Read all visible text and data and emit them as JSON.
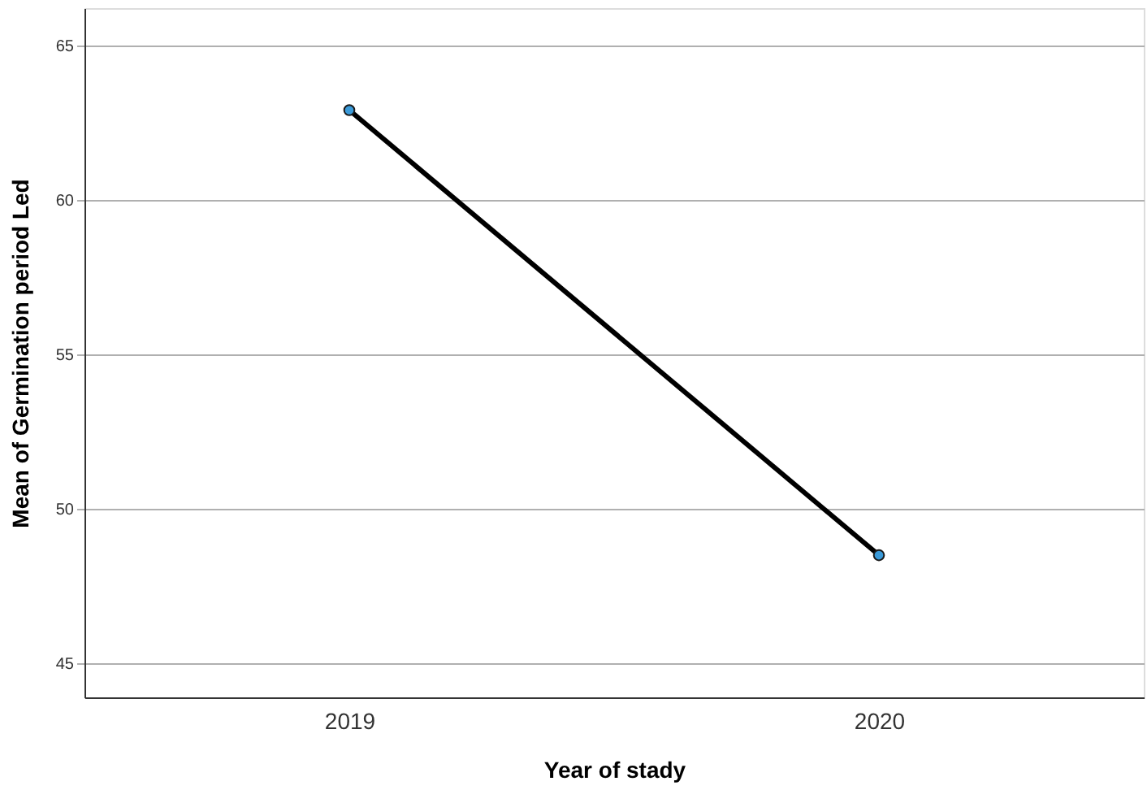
{
  "chart_data": {
    "type": "line",
    "xlabel": "Year of stady",
    "ylabel": "Mean of Germination period  Led",
    "categories": [
      "2019",
      "2020"
    ],
    "series": [
      {
        "color": "#000000",
        "values": [
          62.9,
          48.5
        ]
      }
    ],
    "ylim": [
      43.9,
      66.2
    ],
    "yticks": [
      45,
      50,
      55,
      60,
      65
    ],
    "grid": "y",
    "marker": "circle",
    "line_style": "solid"
  }
}
